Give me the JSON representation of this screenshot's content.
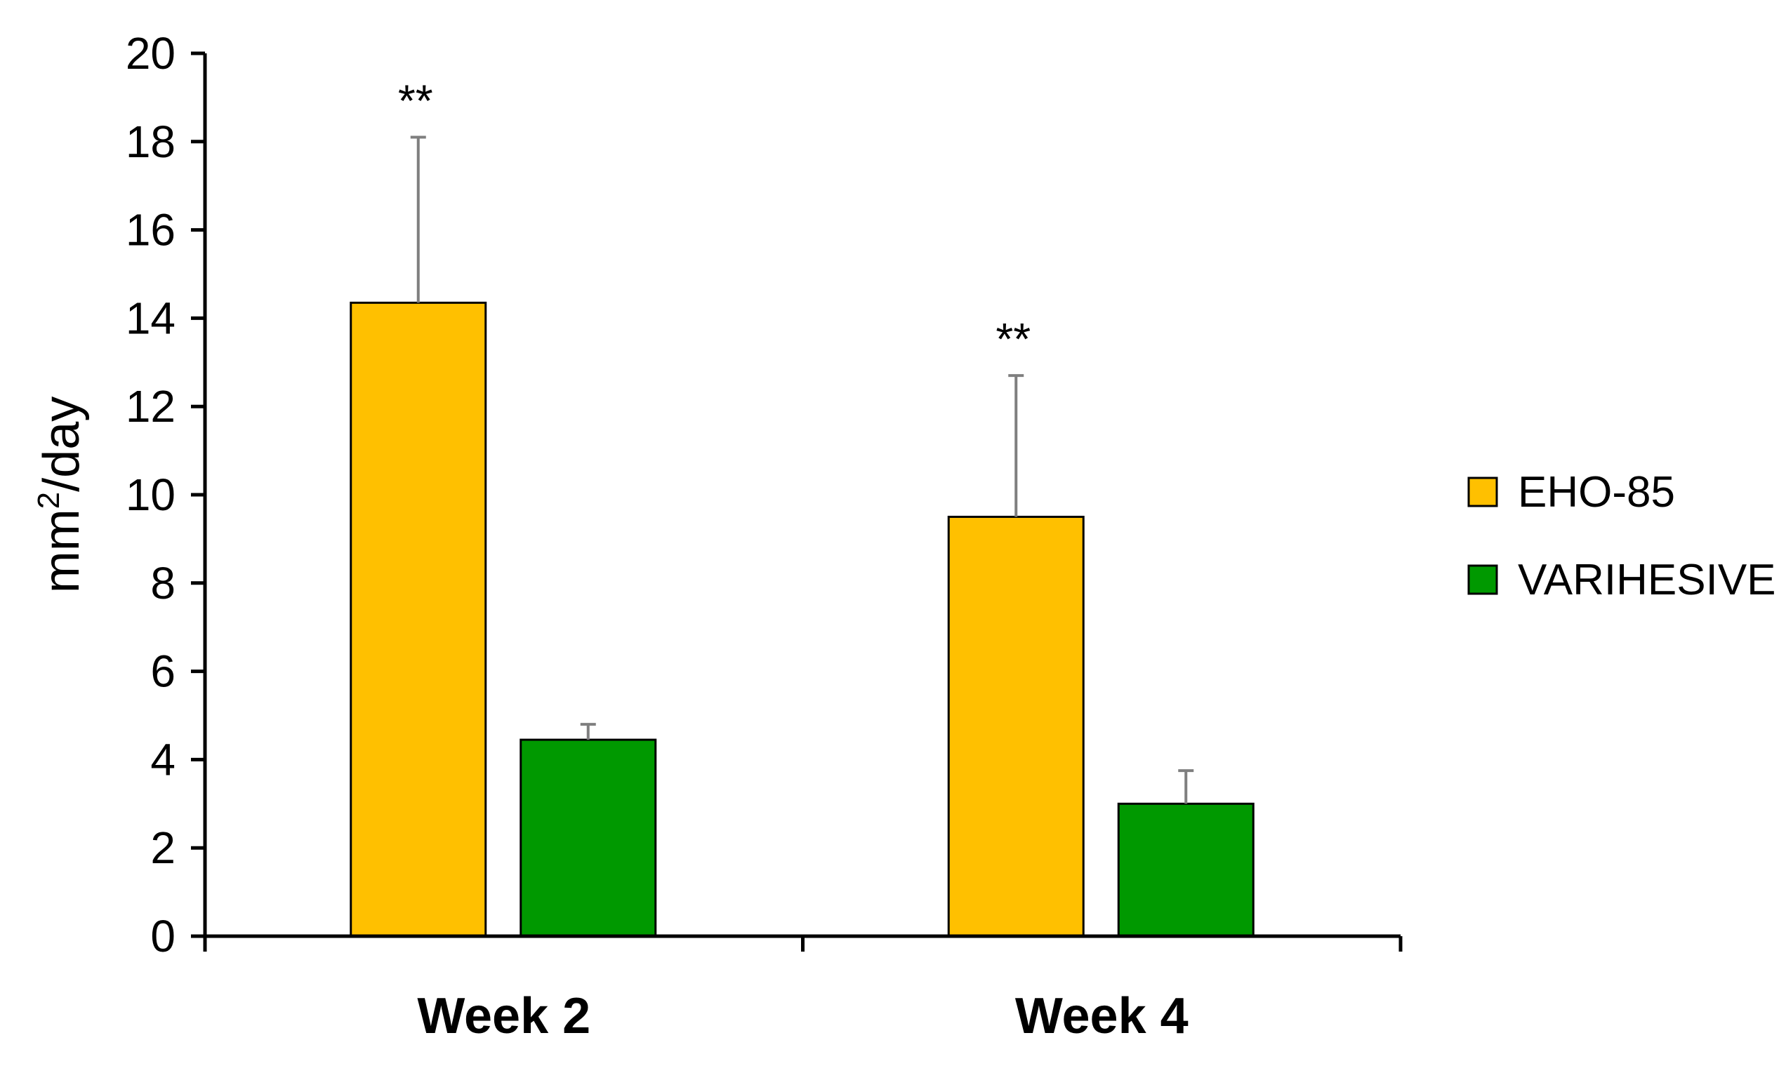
{
  "chart_data": {
    "type": "bar",
    "title": "",
    "xlabel": "",
    "ylabel": "mm²/day",
    "ylabel_base": "mm",
    "ylabel_sup": "2",
    "ylabel_rest": "/day",
    "ylim": [
      0,
      20
    ],
    "yticks": [
      0,
      2,
      4,
      6,
      8,
      10,
      12,
      14,
      16,
      18,
      20
    ],
    "grid": false,
    "legend_position": "right",
    "categories": [
      "Week 2",
      "Week 4"
    ],
    "series": [
      {
        "name": "EHO-85",
        "color": "#FFC000",
        "values": [
          14.35,
          9.5
        ],
        "error": [
          3.75,
          3.2
        ],
        "annotations": [
          "**",
          "**"
        ]
      },
      {
        "name": "VARIHESIVE",
        "color": "#009900",
        "values": [
          4.45,
          3.0
        ],
        "error": [
          0.35,
          0.75
        ],
        "annotations": [
          "",
          ""
        ]
      }
    ]
  }
}
